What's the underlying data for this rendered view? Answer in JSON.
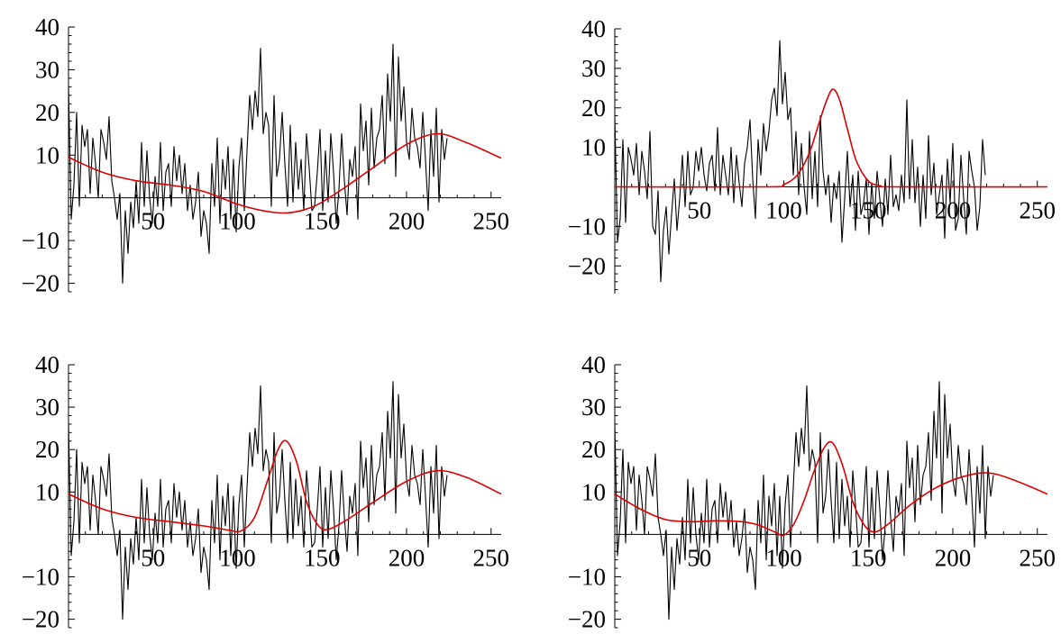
{
  "chart_data": [
    {
      "type": "line",
      "panel": "top-left",
      "xlim": [
        0,
        256
      ],
      "ylim": [
        -22,
        40
      ],
      "xticks": [
        50,
        100,
        150,
        200,
        250
      ],
      "yticks": [
        -20,
        -10,
        10,
        20,
        30,
        40
      ],
      "grid": false,
      "series": [
        {
          "role": "data",
          "color": "#000000",
          "x_start": 0,
          "x_step": 1.6,
          "values": [
            26,
            -5,
            3,
            20,
            -2,
            17,
            12,
            16,
            1,
            14,
            8,
            0,
            16,
            13,
            9,
            19,
            4,
            0,
            -5,
            1,
            -20,
            -3,
            -13,
            -1,
            -7,
            4,
            -6,
            13,
            -2,
            11,
            0,
            -6,
            5,
            -2,
            13,
            -3,
            6,
            8,
            -2,
            12,
            4,
            10,
            1,
            8,
            -3,
            3,
            -5,
            -1,
            6,
            -9,
            -3,
            -6,
            -13,
            8,
            -2,
            14,
            -6,
            9,
            2,
            12,
            -5,
            9,
            -8,
            7,
            14,
            -3,
            11,
            24,
            16,
            25,
            19,
            35,
            15,
            20,
            17,
            -2,
            24,
            5,
            9,
            20,
            8,
            -2,
            17,
            -1,
            13,
            2,
            9,
            -3,
            15,
            7,
            -3,
            -2,
            6,
            16,
            -3,
            11,
            -1,
            15,
            6,
            -6,
            2,
            15,
            4,
            -4,
            9,
            5,
            12,
            -5,
            22,
            11,
            18,
            3,
            21,
            7,
            14,
            16,
            24,
            8,
            29,
            18,
            36,
            5,
            33,
            18,
            26,
            13,
            9,
            21,
            14,
            12,
            7,
            20,
            9,
            -3,
            16,
            5,
            21,
            -1,
            16,
            9,
            14
          ]
        },
        {
          "role": "fit",
          "color": "#dd0000",
          "x": [
            0,
            20,
            40,
            60,
            80,
            100,
            115,
            130,
            145,
            160,
            180,
            200,
            218,
            235,
            256
          ],
          "values": [
            9.5,
            6,
            4,
            3,
            1.5,
            -1.5,
            -3,
            -3.5,
            -2,
            1.5,
            7,
            12.5,
            15,
            13,
            9.3
          ]
        }
      ]
    },
    {
      "type": "line",
      "panel": "top-right",
      "xlim": [
        0,
        256
      ],
      "ylim": [
        -27,
        40
      ],
      "xticks": [
        50,
        100,
        150,
        200,
        250
      ],
      "yticks": [
        -20,
        -10,
        10,
        20,
        30,
        40
      ],
      "grid": false,
      "series": [
        {
          "role": "data",
          "color": "#000000",
          "x_start": 0,
          "x_step": 1.6,
          "values": [
            18,
            -14,
            -8,
            12,
            -9,
            10,
            7,
            3,
            11,
            -2,
            9,
            4,
            -3,
            14,
            -10,
            -12,
            -1,
            -24,
            -11,
            -5,
            -17,
            -7,
            2,
            -11,
            -3,
            8,
            -5,
            9,
            -2,
            0,
            9,
            4,
            10,
            3,
            -1,
            6,
            8,
            -1,
            15,
            -2,
            8,
            3,
            -2,
            10,
            -4,
            8,
            1,
            -5,
            6,
            10,
            17,
            2,
            -8,
            12,
            3,
            16,
            9,
            14,
            22,
            25,
            18,
            37,
            21,
            29,
            17,
            20,
            3,
            14,
            -2,
            11,
            0,
            -7,
            14,
            -3,
            9,
            -5,
            18,
            4,
            -2,
            3,
            -9,
            1,
            -3,
            4,
            -14,
            -3,
            9,
            -5,
            3,
            -11,
            4,
            -7,
            -4,
            2,
            -12,
            1,
            -8,
            4,
            -3,
            -10,
            2,
            -7,
            8,
            -5,
            -2,
            -6,
            3,
            -4,
            22,
            -3,
            12,
            -4,
            5,
            -10,
            3,
            -8,
            13,
            -2,
            6,
            -7,
            -2,
            3,
            -13,
            7,
            -4,
            11,
            -11,
            -8,
            8,
            -3,
            -12,
            9,
            4,
            0,
            -11,
            -5,
            12,
            3
          ]
        },
        {
          "role": "fit",
          "color": "#dd0000",
          "x": [
            0,
            90,
            100,
            108,
            115,
            120,
            125,
            129,
            133,
            138,
            143,
            150,
            157,
            165,
            256
          ],
          "values": [
            0,
            0,
            0.6,
            3,
            8.5,
            15,
            21.5,
            24.7,
            22,
            14,
            6.5,
            1.5,
            0.3,
            0,
            0
          ]
        }
      ]
    },
    {
      "type": "line",
      "panel": "bottom-left",
      "xlim": [
        0,
        256
      ],
      "ylim": [
        -22,
        40
      ],
      "xticks": [
        50,
        100,
        150,
        200,
        250
      ],
      "yticks": [
        -20,
        -10,
        10,
        20,
        30,
        40
      ],
      "grid": false,
      "series": [
        {
          "role": "data",
          "color": "#000000",
          "x_start": 0,
          "x_step": 1.6,
          "values": [
            26,
            -5,
            3,
            20,
            -2,
            17,
            12,
            16,
            1,
            14,
            8,
            0,
            16,
            13,
            9,
            19,
            4,
            0,
            -5,
            1,
            -20,
            -3,
            -13,
            -1,
            -7,
            4,
            -6,
            13,
            -2,
            11,
            0,
            -6,
            5,
            -2,
            13,
            -3,
            6,
            8,
            -2,
            12,
            4,
            10,
            1,
            8,
            -3,
            3,
            -5,
            -1,
            6,
            -9,
            -3,
            -6,
            -13,
            8,
            -2,
            14,
            -6,
            9,
            2,
            12,
            -5,
            9,
            -8,
            7,
            14,
            -3,
            11,
            24,
            16,
            25,
            19,
            35,
            15,
            20,
            17,
            -2,
            24,
            5,
            9,
            20,
            8,
            -2,
            17,
            -1,
            13,
            2,
            9,
            -3,
            15,
            7,
            -3,
            -2,
            6,
            16,
            -3,
            11,
            -1,
            15,
            6,
            -6,
            2,
            15,
            4,
            -4,
            9,
            5,
            12,
            -5,
            22,
            11,
            18,
            3,
            21,
            7,
            14,
            16,
            24,
            8,
            29,
            18,
            36,
            5,
            33,
            18,
            26,
            13,
            9,
            21,
            14,
            12,
            7,
            20,
            9,
            -3,
            16,
            5,
            21,
            -1,
            16,
            9,
            14
          ]
        },
        {
          "role": "fit",
          "color": "#dd0000",
          "x": [
            0,
            20,
            40,
            60,
            80,
            95,
            102,
            110,
            118,
            124,
            129,
            135,
            141,
            148,
            154,
            165,
            180,
            200,
            218,
            235,
            256
          ],
          "values": [
            9.5,
            6,
            4,
            3,
            2,
            1,
            0.8,
            4,
            13,
            20,
            22,
            17,
            7.5,
            2,
            1.2,
            3.5,
            7.5,
            12.5,
            15,
            13.5,
            9.5
          ]
        }
      ]
    },
    {
      "type": "line",
      "panel": "bottom-right",
      "xlim": [
        0,
        256
      ],
      "ylim": [
        -22,
        40
      ],
      "xticks": [
        50,
        100,
        150,
        200,
        250
      ],
      "yticks": [
        -20,
        -10,
        10,
        20,
        30,
        40
      ],
      "grid": false,
      "series": [
        {
          "role": "data",
          "color": "#000000",
          "x_start": 0,
          "x_step": 1.6,
          "values": [
            26,
            -5,
            3,
            20,
            -2,
            17,
            12,
            16,
            1,
            14,
            8,
            0,
            16,
            13,
            9,
            19,
            4,
            0,
            -5,
            1,
            -20,
            -3,
            -13,
            -1,
            -7,
            4,
            -6,
            13,
            -2,
            11,
            0,
            -6,
            5,
            -2,
            13,
            -3,
            6,
            8,
            -2,
            12,
            4,
            10,
            1,
            8,
            -3,
            3,
            -5,
            -1,
            6,
            -9,
            -3,
            -6,
            -13,
            8,
            -2,
            14,
            -6,
            9,
            2,
            12,
            -5,
            9,
            -8,
            7,
            14,
            -3,
            11,
            24,
            16,
            25,
            19,
            35,
            15,
            20,
            17,
            -2,
            24,
            5,
            9,
            20,
            8,
            -2,
            17,
            -1,
            13,
            2,
            9,
            -3,
            15,
            7,
            -3,
            -2,
            6,
            16,
            -3,
            11,
            -1,
            15,
            6,
            -6,
            2,
            15,
            4,
            -4,
            9,
            5,
            12,
            -5,
            22,
            11,
            18,
            3,
            21,
            7,
            14,
            16,
            24,
            8,
            29,
            18,
            36,
            5,
            33,
            18,
            26,
            13,
            9,
            21,
            14,
            12,
            7,
            20,
            9,
            -3,
            16,
            5,
            21,
            -1,
            16,
            9,
            14
          ]
        },
        {
          "role": "fit",
          "color": "#dd0000",
          "x": [
            0,
            15,
            30,
            45,
            60,
            75,
            85,
            95,
            100,
            106,
            112,
            118,
            124,
            129,
            135,
            141,
            148,
            154,
            162,
            175,
            190,
            205,
            220,
            235,
            256
          ],
          "values": [
            9.5,
            6,
            3.5,
            3,
            3.2,
            3,
            2.2,
            0.5,
            -0.2,
            2.5,
            8,
            15,
            20.5,
            21.5,
            16,
            7.5,
            2,
            0.6,
            2.5,
            7,
            11,
            13.5,
            14.5,
            13,
            9.5
          ]
        }
      ]
    }
  ]
}
